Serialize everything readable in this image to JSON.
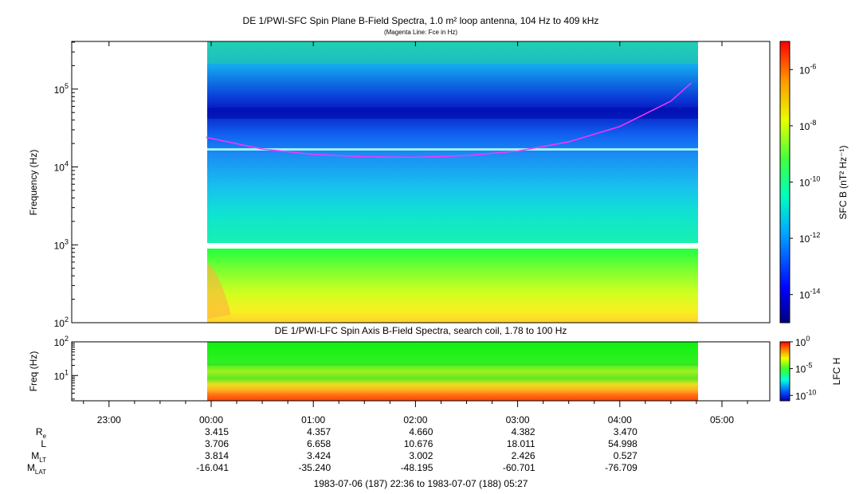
{
  "panel_top": {
    "title": "DE 1/PWI-SFC  Spin Plane B-Field Spectra, 1.0 m² loop antenna, 104 Hz to 409 kHz",
    "subtitle": "(Magenta Line: Fce in Hz)",
    "ylabel": "Frequency (Hz)",
    "yticks": [
      {
        "base": "10",
        "exp": "2"
      },
      {
        "base": "10",
        "exp": "3"
      },
      {
        "base": "10",
        "exp": "4"
      },
      {
        "base": "10",
        "exp": "5"
      }
    ],
    "colorbar": {
      "label": "SFC B (nT² Hz⁻¹)",
      "ticks": [
        {
          "base": "10",
          "exp": "-6"
        },
        {
          "base": "10",
          "exp": "-8"
        },
        {
          "base": "10",
          "exp": "-10"
        },
        {
          "base": "10",
          "exp": "-12"
        },
        {
          "base": "10",
          "exp": "-14"
        }
      ]
    }
  },
  "panel_bottom": {
    "title": "DE 1/PWI-LFC  Spin Axis B-Field Spectra, search coil, 1.78 to 100 Hz",
    "ylabel": "Freq (Hz)",
    "yticks": [
      {
        "base": "10",
        "exp": "1"
      },
      {
        "base": "10",
        "exp": "2"
      }
    ],
    "colorbar": {
      "label": "LFC H",
      "ticks": [
        {
          "base": "10",
          "exp": "0"
        },
        {
          "base": "10",
          "exp": "-5"
        },
        {
          "base": "10",
          "exp": "-10"
        }
      ]
    }
  },
  "time_axis": {
    "ticks": [
      "23:00",
      "00:00",
      "01:00",
      "02:00",
      "03:00",
      "04:00",
      "05:00"
    ],
    "range_label": "1983-07-06 (187) 22:36 to 1983-07-07 (188) 05:27"
  },
  "ephemeris": {
    "rows": [
      {
        "label": "R",
        "sub": "e",
        "values": [
          "3.415",
          "4.357",
          "4.660",
          "4.382",
          "3.470"
        ]
      },
      {
        "label": "L",
        "sub": "",
        "values": [
          "3.706",
          "6.658",
          "10.676",
          "18.011",
          "54.998"
        ]
      },
      {
        "label": "M",
        "sub": "LT",
        "values": [
          "3.814",
          "3.424",
          "3.002",
          "2.426",
          "0.527"
        ]
      },
      {
        "label": "M",
        "sub": "LAT",
        "values": [
          "-16.041",
          "-35.240",
          "-48.195",
          "-60.701",
          "-76.709"
        ]
      }
    ]
  },
  "colors": {
    "fce_line": "#ff33ff",
    "background_band": "#1aa0f0",
    "gap": "#ffffff"
  },
  "chart_data": [
    {
      "type": "heatmap",
      "title": "DE 1/PWI-SFC  Spin Plane B-Field Spectra, 1.0 m² loop antenna, 104 Hz to 409 kHz",
      "xlabel": "",
      "ylabel": "Frequency (Hz)",
      "x_range_hours": [
        -1.4,
        5.45
      ],
      "data_coverage_hours": [
        -0.05,
        4.75
      ],
      "y_scale": "log",
      "ylim": [
        100,
        409000
      ],
      "colorbar_scale": "log",
      "colorbar_range": [
        1e-15,
        1e-05
      ],
      "fce_line": {
        "x": [
          -0.05,
          0.5,
          1.0,
          1.5,
          2.0,
          2.5,
          3.0,
          3.5,
          4.0,
          4.5,
          4.7
        ],
        "y": [
          24000,
          17000,
          14500,
          13500,
          13300,
          14000,
          16000,
          21000,
          33000,
          70000,
          120000
        ]
      },
      "grid": false
    },
    {
      "type": "heatmap",
      "title": "DE 1/PWI-LFC  Spin Axis B-Field Spectra, search coil, 1.78 to 100 Hz",
      "ylabel": "Freq (Hz)",
      "y_scale": "log",
      "ylim": [
        1.78,
        100
      ],
      "colorbar_scale": "log",
      "colorbar_range": [
        1e-11,
        1
      ],
      "grid": false
    }
  ]
}
